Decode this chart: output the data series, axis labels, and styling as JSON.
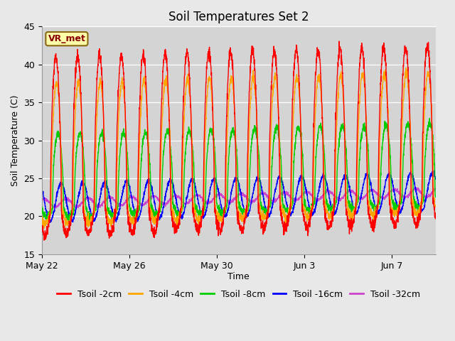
{
  "title": "Soil Temperatures Set 2",
  "xlabel": "Time",
  "ylabel": "Soil Temperature (C)",
  "ylim": [
    15,
    45
  ],
  "background_color": "#e8e8e8",
  "plot_bg_color": "#d4d4d4",
  "annotation_text": "VR_met",
  "annotation_color": "#8B0000",
  "annotation_bg": "#ffffaa",
  "annotation_border": "#8B6914",
  "series": [
    {
      "label": "Tsoil -2cm",
      "color": "#ff0000"
    },
    {
      "label": "Tsoil -4cm",
      "color": "#ffa500"
    },
    {
      "label": "Tsoil -8cm",
      "color": "#00cc00"
    },
    {
      "label": "Tsoil -16cm",
      "color": "#0000ff"
    },
    {
      "label": "Tsoil -32cm",
      "color": "#cc44cc"
    }
  ],
  "x_tick_labels": [
    "May 22",
    "May 26",
    "May 30",
    "Jun 3",
    "Jun 7"
  ],
  "x_tick_positions": [
    0,
    4,
    8,
    12,
    16
  ],
  "n_days": 18,
  "pts_per_day": 144,
  "title_fontsize": 12,
  "label_fontsize": 9,
  "tick_fontsize": 9,
  "legend_fontsize": 9,
  "line_width": 1.0
}
